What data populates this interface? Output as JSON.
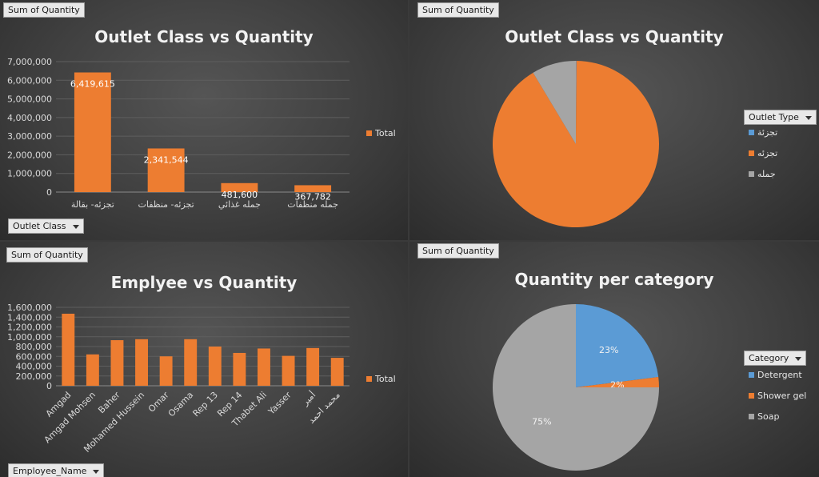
{
  "field_buttons": {
    "sum_of_quantity": "Sum of Quantity",
    "outlet_class": "Outlet Class",
    "outlet_type": "Outlet Type",
    "employee_name": "Employee_Name",
    "category": "Category"
  },
  "colors": {
    "orange": "#ED7D31",
    "blue": "#5B9BD5",
    "gray": "#A5A5A5"
  },
  "chart_data": [
    {
      "type": "bar",
      "title": "Outlet Class vs Quantity",
      "categories": [
        "تجزئه- بقالة",
        "تجزئه- منظفات",
        "جمله غذائي",
        "جمله منظفات"
      ],
      "series": [
        {
          "name": "Total",
          "values": [
            6419615,
            2341544,
            481600,
            367782
          ]
        }
      ],
      "data_labels": [
        "6,419,615",
        "2,341,544",
        "481,600",
        "367,782"
      ],
      "ylim": [
        0,
        7000000
      ],
      "yticks": [
        "0",
        "1,000,000",
        "2,000,000",
        "3,000,000",
        "4,000,000",
        "5,000,000",
        "6,000,000",
        "7,000,000"
      ],
      "grid": true,
      "legend": "right"
    },
    {
      "type": "pie",
      "title": "Outlet Class vs Quantity",
      "labels": [
        "تجزئة",
        "تجزئه",
        "جمله"
      ],
      "values": [
        0.1,
        91.3,
        8.6
      ],
      "legend": "right"
    },
    {
      "type": "bar",
      "title": "Emplyee vs Quantity",
      "categories": [
        "Amgad",
        "Amgad Mohsen",
        "Baher",
        "Mohamed Hussein",
        "Omar",
        "Osama",
        "Rep 13",
        "Rep 14",
        "Thabet Ali",
        "Yasser",
        "أمير",
        "محمد احمد"
      ],
      "series": [
        {
          "name": "Total",
          "values": [
            1470000,
            640000,
            930000,
            950000,
            600000,
            950000,
            800000,
            670000,
            760000,
            610000,
            770000,
            570000
          ]
        }
      ],
      "ylim": [
        0,
        1600000
      ],
      "yticks": [
        "0",
        "200,000",
        "400,000",
        "600,000",
        "800,000",
        "1,000,000",
        "1,200,000",
        "1,400,000",
        "1,600,000"
      ],
      "grid": true,
      "legend": "right"
    },
    {
      "type": "pie",
      "title": "Quantity per category",
      "labels": [
        "Detergent",
        "Shower gel",
        "Soap"
      ],
      "values": [
        23,
        2,
        75
      ],
      "data_labels": [
        "23%",
        "2%",
        "75%"
      ],
      "legend": "right"
    }
  ]
}
